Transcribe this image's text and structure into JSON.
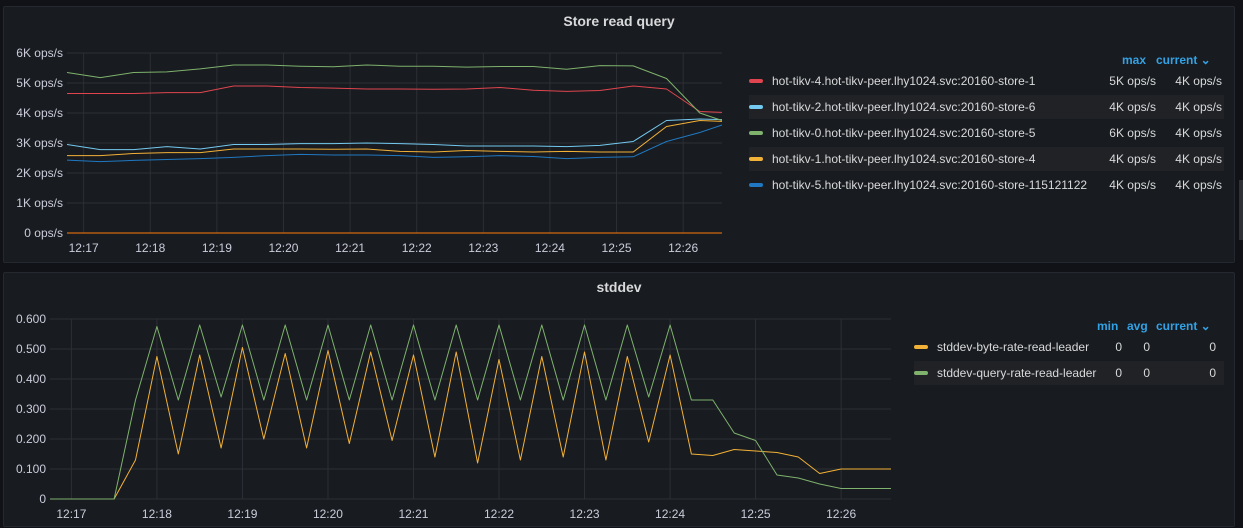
{
  "colors": {
    "red": "#e0454f",
    "lightblue": "#73c9f0",
    "green": "#7eb26d",
    "yellow": "#f2b137",
    "blue": "#1f78c1",
    "orange": "#f2b137",
    "grid": "#2c2f35"
  },
  "panels": [
    {
      "title": "Store read query",
      "legend": {
        "headers": [
          "max",
          "current ⌄"
        ],
        "rows": [
          {
            "name": "hot-tikv-4.hot-tikv-peer.lhy1024.svc:20160-store-1",
            "color": "#e0454f",
            "max": "5K ops/s",
            "current": "4K ops/s"
          },
          {
            "name": "hot-tikv-2.hot-tikv-peer.lhy1024.svc:20160-store-6",
            "color": "#73c9f0",
            "max": "4K ops/s",
            "current": "4K ops/s"
          },
          {
            "name": "hot-tikv-0.hot-tikv-peer.lhy1024.svc:20160-store-5",
            "color": "#7eb26d",
            "max": "6K ops/s",
            "current": "4K ops/s"
          },
          {
            "name": "hot-tikv-1.hot-tikv-peer.lhy1024.svc:20160-store-4",
            "color": "#f2b137",
            "max": "4K ops/s",
            "current": "4K ops/s"
          },
          {
            "name": "hot-tikv-5.hot-tikv-peer.lhy1024.svc:20160-store-115121122",
            "color": "#1f78c1",
            "max": "4K ops/s",
            "current": "4K ops/s"
          }
        ]
      }
    },
    {
      "title": "stddev",
      "legend": {
        "headers": [
          "min",
          "avg",
          "current ⌄"
        ],
        "rows": [
          {
            "name": "stddev-byte-rate-read-leader",
            "color": "#f2b137",
            "min": "0",
            "avg": "0",
            "current": "0"
          },
          {
            "name": "stddev-query-rate-read-leader",
            "color": "#7eb26d",
            "min": "0",
            "avg": "0",
            "current": "0"
          }
        ]
      }
    }
  ],
  "chart_data": [
    {
      "type": "line",
      "title": "Store read query",
      "xticks": [
        "12:17",
        "12:18",
        "12:19",
        "12:20",
        "12:21",
        "12:22",
        "12:23",
        "12:24",
        "12:25",
        "12:26"
      ],
      "xlim": [
        "12:16:45",
        "12:26:35"
      ],
      "x": [
        "12:16:45",
        "12:17:15",
        "12:17:45",
        "12:18:15",
        "12:18:45",
        "12:19:15",
        "12:19:45",
        "12:20:15",
        "12:20:45",
        "12:21:15",
        "12:21:45",
        "12:22:15",
        "12:22:45",
        "12:23:15",
        "12:23:45",
        "12:24:15",
        "12:24:45",
        "12:25:15",
        "12:25:45",
        "12:26:15",
        "12:26:35"
      ],
      "yticks": [
        "0 ops/s",
        "1K ops/s",
        "2K ops/s",
        "3K ops/s",
        "4K ops/s",
        "5K ops/s",
        "6K ops/s"
      ],
      "ylim": [
        0,
        6000
      ],
      "grid": true,
      "legend_position": "right",
      "series": [
        {
          "name": "hot-tikv-4.hot-tikv-peer.lhy1024.svc:20160-store-1",
          "color": "#e0454f",
          "values": [
            4650,
            4650,
            4650,
            4680,
            4680,
            4900,
            4900,
            4850,
            4830,
            4800,
            4800,
            4790,
            4800,
            4850,
            4760,
            4720,
            4750,
            4900,
            4800,
            4050,
            4020
          ]
        },
        {
          "name": "hot-tikv-2.hot-tikv-peer.lhy1024.svc:20160-store-6",
          "color": "#73c9f0",
          "values": [
            2950,
            2780,
            2780,
            2880,
            2800,
            2950,
            2950,
            2980,
            2980,
            3000,
            2980,
            2950,
            2900,
            2900,
            2900,
            2880,
            2920,
            3050,
            3750,
            3800,
            3780
          ]
        },
        {
          "name": "hot-tikv-0.hot-tikv-peer.lhy1024.svc:20160-store-5",
          "color": "#7eb26d",
          "values": [
            5350,
            5180,
            5350,
            5370,
            5470,
            5600,
            5600,
            5560,
            5540,
            5600,
            5560,
            5560,
            5530,
            5550,
            5550,
            5460,
            5580,
            5570,
            5150,
            4000,
            3750
          ]
        },
        {
          "name": "hot-tikv-1.hot-tikv-peer.lhy1024.svc:20160-store-4",
          "color": "#f2b137",
          "values": [
            2580,
            2580,
            2650,
            2680,
            2680,
            2800,
            2800,
            2800,
            2790,
            2800,
            2720,
            2700,
            2750,
            2720,
            2700,
            2720,
            2700,
            2700,
            3550,
            3750,
            3720
          ]
        },
        {
          "name": "hot-tikv-5.hot-tikv-peer.lhy1024.svc:20160-store-115121122",
          "color": "#1f78c1",
          "values": [
            2430,
            2380,
            2420,
            2450,
            2480,
            2520,
            2580,
            2620,
            2600,
            2600,
            2580,
            2520,
            2540,
            2580,
            2550,
            2480,
            2520,
            2540,
            3050,
            3350,
            3600
          ]
        },
        {
          "name": "",
          "color": "#ff780a",
          "values": [
            0,
            0,
            0,
            0,
            0,
            0,
            0,
            0,
            0,
            0,
            0,
            0,
            0,
            0,
            0,
            0,
            0,
            0,
            0,
            0,
            0
          ]
        }
      ]
    },
    {
      "type": "line",
      "title": "stddev",
      "xticks": [
        "12:17",
        "12:18",
        "12:19",
        "12:20",
        "12:21",
        "12:22",
        "12:23",
        "12:24",
        "12:25",
        "12:26"
      ],
      "xlim": [
        "12:16:45",
        "12:26:35"
      ],
      "x": [
        "12:16:45",
        "12:17:00",
        "12:17:15",
        "12:17:30",
        "12:17:45",
        "12:18:00",
        "12:18:15",
        "12:18:30",
        "12:18:45",
        "12:19:00",
        "12:19:15",
        "12:19:30",
        "12:19:45",
        "12:20:00",
        "12:20:15",
        "12:20:30",
        "12:20:45",
        "12:21:00",
        "12:21:15",
        "12:21:30",
        "12:21:45",
        "12:22:00",
        "12:22:15",
        "12:22:30",
        "12:22:45",
        "12:23:00",
        "12:23:15",
        "12:23:30",
        "12:23:45",
        "12:24:00",
        "12:24:15",
        "12:24:30",
        "12:24:45",
        "12:25:00",
        "12:25:15",
        "12:25:30",
        "12:25:45",
        "12:26:00",
        "12:26:15",
        "12:26:35"
      ],
      "yticks": [
        "0",
        "0.100",
        "0.200",
        "0.300",
        "0.400",
        "0.500",
        "0.600"
      ],
      "ylim": [
        0,
        0.6
      ],
      "grid": true,
      "legend_position": "right",
      "series": [
        {
          "name": "stddev-byte-rate-read-leader",
          "color": "#f2b137",
          "values": [
            0,
            0,
            0,
            0,
            0.13,
            0.475,
            0.15,
            0.48,
            0.17,
            0.505,
            0.2,
            0.485,
            0.17,
            0.495,
            0.185,
            0.49,
            0.195,
            0.48,
            0.14,
            0.49,
            0.12,
            0.465,
            0.13,
            0.475,
            0.14,
            0.49,
            0.13,
            0.475,
            0.19,
            0.48,
            0.15,
            0.145,
            0.165,
            0.16,
            0.155,
            0.14,
            0.085,
            0.1,
            0.1,
            0.1
          ]
        },
        {
          "name": "stddev-query-rate-read-leader",
          "color": "#7eb26d",
          "values": [
            0,
            0,
            0,
            0,
            0.33,
            0.575,
            0.33,
            0.58,
            0.34,
            0.58,
            0.33,
            0.58,
            0.33,
            0.58,
            0.33,
            0.58,
            0.33,
            0.58,
            0.33,
            0.58,
            0.33,
            0.58,
            0.33,
            0.58,
            0.33,
            0.58,
            0.33,
            0.58,
            0.34,
            0.58,
            0.33,
            0.33,
            0.22,
            0.195,
            0.08,
            0.07,
            0.05,
            0.035,
            0.035,
            0.035
          ]
        }
      ]
    }
  ]
}
